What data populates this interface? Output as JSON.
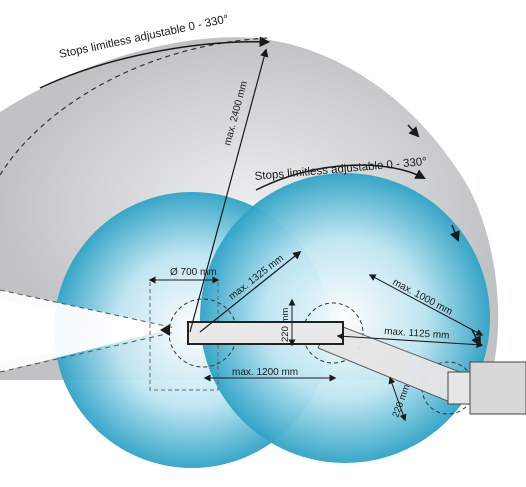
{
  "labels": {
    "stops_outer": "Stops limitless adjustable 0 - 330°",
    "stops_inner": "Stops limitless adjustable 0 - 330°",
    "max_2400": "max. 2400 mm",
    "diameter_700": "Ø 700 mm",
    "max_1325": "max. 1325 mm",
    "dim_220_top": "220 mm",
    "max_1200": "max. 1200 mm",
    "max_1000": "max. 1000 mm",
    "max_1125": "max. 1125 mm",
    "dim_220_arm": "220 mm"
  },
  "colors": {
    "outer_range": "#c9ccce",
    "circle_fill": "#2fa3c6",
    "arm_fill": "#e8e8e8",
    "arm_outline": "#222222",
    "arrow": "#1a1a1a"
  }
}
